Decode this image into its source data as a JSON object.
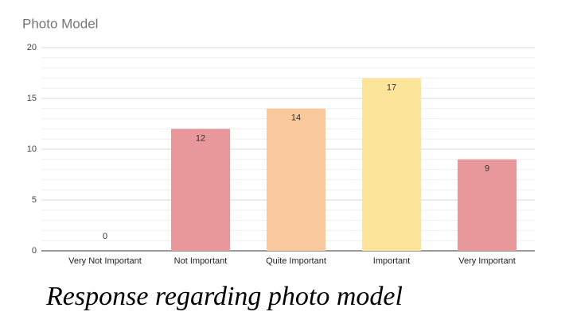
{
  "chart_data": {
    "type": "bar",
    "title": "Photo Model",
    "categories": [
      "Very Not Important",
      "Not Important",
      "Quite Important",
      "Important",
      "Very Important"
    ],
    "values": [
      0,
      12,
      14,
      17,
      9
    ],
    "colors": [
      "#e8979a",
      "#e8979a",
      "#f9c99d",
      "#fde49b",
      "#e8979a"
    ],
    "ylim": [
      0,
      20
    ],
    "yticks": [
      0,
      5,
      10,
      15,
      20
    ],
    "grid": true,
    "minor_grid": true,
    "caption": "Response regarding photo model"
  }
}
